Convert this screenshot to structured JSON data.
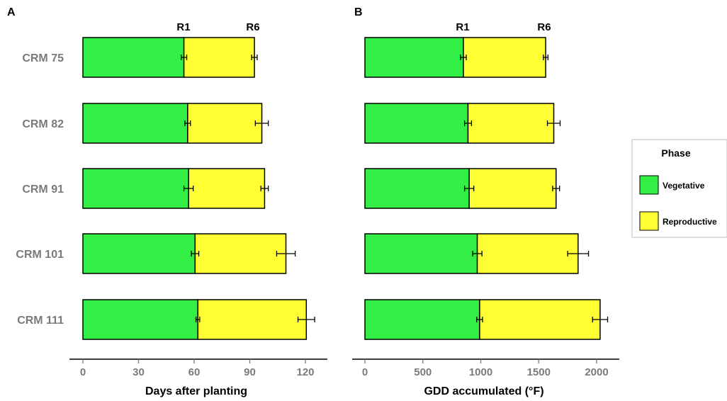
{
  "chart_data": [
    {
      "panel": "A",
      "type": "bar",
      "orientation": "horizontal",
      "stacked": true,
      "categories": [
        "CRM 75",
        "CRM 82",
        "CRM 91",
        "CRM 101",
        "CRM 111"
      ],
      "series": [
        {
          "name": "Vegetative",
          "values": [
            54.5,
            56.5,
            57,
            60.5,
            62
          ],
          "error": [
            1.5,
            1.5,
            2.5,
            2,
            1
          ]
        },
        {
          "name": "Reproductive",
          "end_values": [
            92.5,
            96.5,
            98,
            109.5,
            120.5
          ],
          "error": [
            1.5,
            3.5,
            2,
            5,
            4.5
          ]
        }
      ],
      "stage_labels": [
        "R1",
        "R6"
      ],
      "xlabel": "Days after planting",
      "xlim": [
        0,
        125
      ],
      "xticks": [
        0,
        30,
        60,
        90,
        120
      ]
    },
    {
      "panel": "B",
      "type": "bar",
      "orientation": "horizontal",
      "stacked": true,
      "categories": [
        "CRM 75",
        "CRM 82",
        "CRM 91",
        "CRM 101",
        "CRM 111"
      ],
      "series": [
        {
          "name": "Vegetative",
          "values": [
            850,
            890,
            900,
            970,
            990
          ],
          "error": [
            25,
            30,
            40,
            40,
            25
          ]
        },
        {
          "name": "Reproductive",
          "end_values": [
            1560,
            1630,
            1650,
            1840,
            2030
          ],
          "error": [
            20,
            55,
            30,
            90,
            65
          ]
        }
      ],
      "stage_labels": [
        "R1",
        "R6"
      ],
      "xlabel": "GDD accumulated (°F)",
      "xlim": [
        0,
        2100
      ],
      "xticks": [
        0,
        500,
        1000,
        1500,
        2000
      ]
    }
  ],
  "legend": {
    "title": "Phase",
    "entries": [
      {
        "label": "Vegetative",
        "color": "#33ee44"
      },
      {
        "label": "Reproductive",
        "color": "#ffff33"
      }
    ],
    "placement": "right"
  },
  "colors": {
    "vegetative": "#33ee44",
    "reproductive": "#ffff33",
    "tick_text": "#7a7a7a"
  }
}
